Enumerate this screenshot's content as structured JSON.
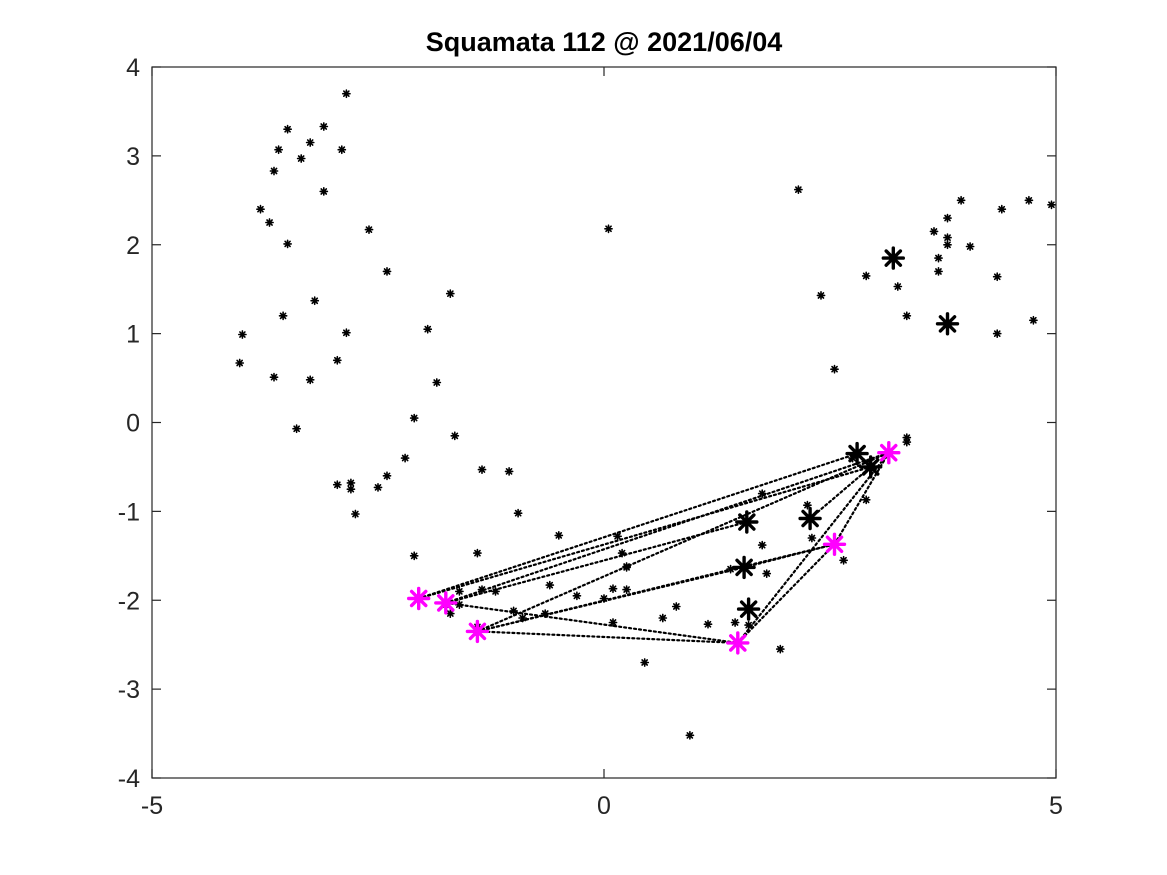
{
  "chart_data": {
    "type": "scatter",
    "title": "Squamata 112 @ 2021/06/04",
    "xlabel": "",
    "ylabel": "",
    "xlim": [
      -5,
      5
    ],
    "ylim": [
      -4,
      4
    ],
    "xticks": [
      "-5",
      "0",
      "5"
    ],
    "yticks": [
      "4",
      "3",
      "2",
      "1",
      "0",
      "-1",
      "-2",
      "-3",
      "-4"
    ],
    "grid": false,
    "legend": "none",
    "colors": {
      "points": "#000000",
      "highlight": "#ff00ff",
      "axis": "#262626"
    },
    "series": [
      {
        "marker": "star-small",
        "points": [
          [
            -2.85,
            3.7
          ],
          [
            -3.5,
            3.3
          ],
          [
            -3.1,
            3.33
          ],
          [
            -3.25,
            3.15
          ],
          [
            -3.6,
            3.07
          ],
          [
            -2.9,
            3.07
          ],
          [
            -3.35,
            2.97
          ],
          [
            -3.65,
            2.83
          ],
          [
            -3.1,
            2.6
          ],
          [
            -3.8,
            2.4
          ],
          [
            -3.7,
            2.25
          ],
          [
            -3.5,
            2.01
          ],
          [
            -2.6,
            2.17
          ],
          [
            -2.4,
            1.7
          ],
          [
            -3.2,
            1.37
          ],
          [
            -3.55,
            1.2
          ],
          [
            -2.85,
            1.01
          ],
          [
            -4.0,
            0.99
          ],
          [
            -2.95,
            0.7
          ],
          [
            -4.03,
            0.67
          ],
          [
            -3.65,
            0.51
          ],
          [
            -3.25,
            0.48
          ],
          [
            -3.4,
            -0.07
          ],
          [
            -1.7,
            1.45
          ],
          [
            -1.95,
            1.05
          ],
          [
            -1.85,
            0.45
          ],
          [
            -2.1,
            0.05
          ],
          [
            -1.65,
            -0.15
          ],
          [
            -2.2,
            -0.4
          ],
          [
            -2.95,
            -0.7
          ],
          [
            -2.8,
            -0.68
          ],
          [
            -2.8,
            -0.75
          ],
          [
            -2.4,
            -0.6
          ],
          [
            -2.5,
            -0.73
          ],
          [
            -2.75,
            -1.03
          ],
          [
            -1.35,
            -0.53
          ],
          [
            -1.05,
            -0.55
          ],
          [
            -0.95,
            -1.02
          ],
          [
            -2.1,
            -1.5
          ],
          [
            -1.4,
            -1.47
          ],
          [
            -0.5,
            -1.27
          ],
          [
            0.05,
            2.18
          ],
          [
            2.15,
            2.62
          ],
          [
            2.55,
            0.6
          ],
          [
            2.4,
            1.43
          ],
          [
            2.9,
            1.65
          ],
          [
            3.25,
            1.53
          ],
          [
            3.35,
            1.2
          ],
          [
            3.65,
            2.15
          ],
          [
            3.7,
            1.85
          ],
          [
            3.7,
            1.7
          ],
          [
            3.8,
            2.0
          ],
          [
            3.8,
            2.08
          ],
          [
            3.8,
            2.3
          ],
          [
            3.95,
            2.5
          ],
          [
            4.05,
            1.98
          ],
          [
            4.4,
            2.4
          ],
          [
            4.35,
            1.64
          ],
          [
            4.35,
            1.0
          ],
          [
            4.7,
            2.5
          ],
          [
            4.75,
            1.15
          ],
          [
            4.95,
            2.45
          ],
          [
            3.35,
            -0.17
          ],
          [
            3.35,
            -0.22
          ],
          [
            2.9,
            -0.87
          ],
          [
            2.25,
            -0.93
          ],
          [
            1.75,
            -1.38
          ],
          [
            1.4,
            -1.65
          ],
          [
            1.6,
            -2.28
          ],
          [
            1.15,
            -2.27
          ],
          [
            0.8,
            -2.07
          ],
          [
            0.65,
            -2.2
          ],
          [
            0.45,
            -2.7
          ],
          [
            0.25,
            -1.88
          ],
          [
            0.25,
            -1.63
          ],
          [
            0.2,
            -1.47
          ],
          [
            0.15,
            -1.28
          ],
          [
            0.1,
            -1.87
          ],
          [
            0.0,
            -1.98
          ],
          [
            0.1,
            -2.25
          ],
          [
            -0.3,
            -1.95
          ],
          [
            -0.6,
            -1.83
          ],
          [
            -0.65,
            -2.15
          ],
          [
            -0.9,
            -2.2
          ],
          [
            -1.0,
            -2.12
          ],
          [
            -1.2,
            -1.9
          ],
          [
            -1.35,
            -1.88
          ],
          [
            -1.6,
            -1.9
          ],
          [
            -1.6,
            -2.05
          ],
          [
            -1.75,
            -2.05
          ],
          [
            -1.7,
            -2.15
          ],
          [
            -1.4,
            -2.3
          ],
          [
            1.45,
            -2.25
          ],
          [
            1.95,
            -2.55
          ],
          [
            0.95,
            -3.52
          ],
          [
            1.75,
            -0.8
          ],
          [
            2.3,
            -1.3
          ],
          [
            1.8,
            -1.7
          ],
          [
            2.75,
            -0.4
          ],
          [
            2.65,
            -1.55
          ],
          [
            0.25,
            -1.62
          ]
        ]
      },
      {
        "marker": "star-large",
        "points": [
          [
            3.2,
            1.85
          ],
          [
            3.8,
            1.11
          ],
          [
            2.8,
            -0.35
          ],
          [
            2.95,
            -0.5
          ],
          [
            1.58,
            -1.12
          ],
          [
            2.28,
            -1.08
          ],
          [
            1.55,
            -1.63
          ],
          [
            1.6,
            -2.1
          ]
        ]
      },
      {
        "marker": "star-highlight",
        "points": [
          [
            -2.05,
            -1.98
          ],
          [
            -1.75,
            -2.03
          ],
          [
            -1.4,
            -2.35
          ],
          [
            1.48,
            -2.48
          ],
          [
            2.55,
            -1.37
          ],
          [
            3.15,
            -0.34
          ]
        ]
      }
    ],
    "connections": [
      [
        [
          -2.05,
          -1.98
        ],
        [
          2.8,
          -0.35
        ]
      ],
      [
        [
          -2.05,
          -1.98
        ],
        [
          2.95,
          -0.5
        ]
      ],
      [
        [
          -1.75,
          -2.03
        ],
        [
          3.15,
          -0.34
        ]
      ],
      [
        [
          -1.75,
          -2.03
        ],
        [
          1.58,
          -1.12
        ]
      ],
      [
        [
          -1.75,
          -2.03
        ],
        [
          1.48,
          -2.48
        ]
      ],
      [
        [
          -1.4,
          -2.35
        ],
        [
          3.15,
          -0.34
        ]
      ],
      [
        [
          -1.4,
          -2.35
        ],
        [
          1.55,
          -1.63
        ]
      ],
      [
        [
          -1.4,
          -2.35
        ],
        [
          2.55,
          -1.37
        ]
      ],
      [
        [
          -1.4,
          -2.35
        ],
        [
          1.48,
          -2.48
        ]
      ],
      [
        [
          1.48,
          -2.48
        ],
        [
          2.55,
          -1.37
        ]
      ],
      [
        [
          1.48,
          -2.48
        ],
        [
          3.15,
          -0.34
        ]
      ],
      [
        [
          1.55,
          -1.63
        ],
        [
          2.55,
          -1.37
        ]
      ],
      [
        [
          2.55,
          -1.37
        ],
        [
          3.15,
          -0.34
        ]
      ],
      [
        [
          2.28,
          -1.08
        ],
        [
          2.95,
          -0.5
        ]
      ]
    ]
  }
}
